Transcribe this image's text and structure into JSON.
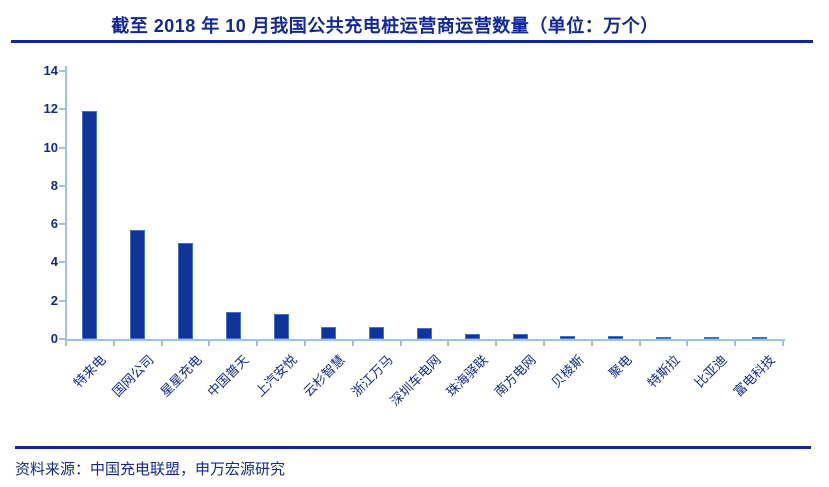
{
  "title": "截至 2018 年 10 月我国公共充电桩运营商运营数量（单位：万个）",
  "footer": {
    "source_text": "资料来源：中国充电联盟，申万宏源研究"
  },
  "colors": {
    "navy_text": "#12289A",
    "bar_fill": "#10339E",
    "bar_border": "#4472C4",
    "axis_line": "#9DC3E6"
  },
  "chart_data": {
    "type": "bar",
    "title": "截至 2018 年 10 月我国公共充电桩运营商运营数量",
    "unit": "万个",
    "categories": [
      "特来电",
      "国网公司",
      "星星充电",
      "中国普天",
      "上汽安悦",
      "云杉智慧",
      "浙江万马",
      "深圳车电网",
      "珠海驿联",
      "南方电网",
      "贝棱斯",
      "聚电",
      "特斯拉",
      "比亚迪",
      "富电科技"
    ],
    "values": [
      11.9,
      5.7,
      5.0,
      1.4,
      1.3,
      0.65,
      0.62,
      0.58,
      0.28,
      0.25,
      0.18,
      0.15,
      0.13,
      0.12,
      0.1
    ],
    "xlabel": "",
    "ylabel": "",
    "ylim": [
      0,
      14
    ],
    "yticks": [
      0,
      2,
      4,
      6,
      8,
      10,
      12,
      14
    ],
    "grid": false,
    "legend_position": "none"
  }
}
